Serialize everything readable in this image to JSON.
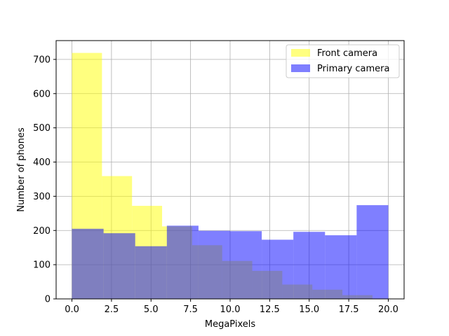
{
  "chart_data": {
    "type": "bar",
    "title": "",
    "xlabel": "MegaPixels",
    "ylabel": "Number of phones",
    "xlim": [
      -1.0,
      21.0
    ],
    "ylim": [
      0,
      755
    ],
    "x_ticks": [
      0.0,
      2.5,
      5.0,
      7.5,
      10.0,
      12.5,
      15.0,
      17.5,
      20.0
    ],
    "x_tick_labels": [
      "0.0",
      "2.5",
      "5.0",
      "7.5",
      "10.0",
      "12.5",
      "15.0",
      "17.5",
      "20.0"
    ],
    "y_ticks": [
      0,
      100,
      200,
      300,
      400,
      500,
      600,
      700
    ],
    "y_tick_labels": [
      "0",
      "100",
      "200",
      "300",
      "400",
      "500",
      "600",
      "700"
    ],
    "grid": true,
    "legend_position": "top-right",
    "series": [
      {
        "name": "Front camera",
        "color": "#ffff00",
        "opacity": 0.5,
        "bin_edges": [
          0.0,
          1.9,
          3.8,
          5.7,
          7.6,
          9.5,
          11.4,
          13.3,
          15.2,
          17.1,
          19.0
        ],
        "values": [
          719,
          359,
          272,
          212,
          157,
          111,
          82,
          42,
          27,
          11
        ]
      },
      {
        "name": "Primary camera",
        "color": "#0000ff",
        "opacity": 0.5,
        "bin_edges": [
          0.0,
          2.0,
          4.0,
          6.0,
          8.0,
          10.0,
          12.0,
          14.0,
          16.0,
          18.0,
          20.0
        ],
        "values": [
          205,
          192,
          154,
          214,
          199,
          198,
          173,
          196,
          186,
          274
        ]
      }
    ]
  }
}
